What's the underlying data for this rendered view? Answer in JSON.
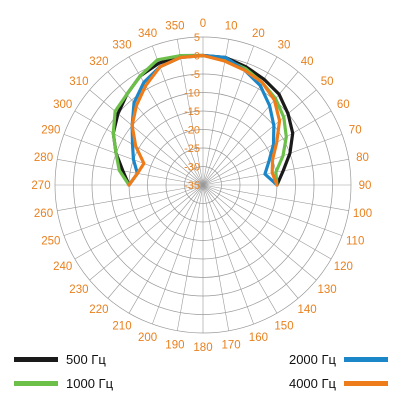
{
  "chart_data": {
    "type": "polar-line",
    "angular_ticks": [
      "0",
      "10",
      "20",
      "30",
      "40",
      "50",
      "60",
      "70",
      "80",
      "90",
      "100",
      "110",
      "120",
      "130",
      "140",
      "150",
      "160",
      "170",
      "180",
      "190",
      "200",
      "210",
      "220",
      "230",
      "240",
      "250",
      "260",
      "270",
      "280",
      "290",
      "300",
      "310",
      "320",
      "330",
      "340",
      "350"
    ],
    "radial_ticks": [
      "5",
      "0",
      "-5",
      "-10",
      "-15",
      "-20",
      "-25",
      "-30",
      "-35"
    ],
    "rlim": [
      -35,
      5
    ],
    "grid": true,
    "legend_placement": "bottom",
    "colors": {
      "grid": "#999999",
      "angle_label": "#E8801E",
      "radial_label": "#E8801E"
    },
    "series": [
      {
        "name": "500 Гц",
        "color": "#1a1a1a",
        "angles": [
          270,
          280,
          290,
          300,
          310,
          320,
          330,
          340,
          350,
          0,
          10,
          20,
          30,
          40,
          50,
          60,
          70,
          80,
          90
        ],
        "values": [
          -15,
          -13,
          -10,
          -7,
          -5,
          -3,
          -1,
          0,
          0.5,
          0,
          0,
          -1,
          -2,
          -3,
          -5,
          -7,
          -10,
          -13,
          -15
        ]
      },
      {
        "name": "1000 Гц",
        "color": "#6cc04a",
        "angles": [
          270,
          280,
          290,
          300,
          310,
          320,
          330,
          340,
          350,
          0,
          10,
          20,
          30,
          40,
          50,
          60,
          70,
          80,
          90
        ],
        "values": [
          -15,
          -12,
          -10,
          -7,
          -4,
          -3,
          -1,
          1,
          0.5,
          0,
          -0.5,
          -1.5,
          -3,
          -4.5,
          -6.5,
          -9,
          -12,
          -15,
          -15
        ]
      },
      {
        "name": "2000 Гц",
        "color": "#1b86c8",
        "angles": [
          270,
          280,
          290,
          300,
          310,
          320,
          330,
          340,
          350,
          0,
          10,
          20,
          30,
          40,
          50,
          60,
          70,
          80,
          90
        ],
        "values": [
          -15,
          -17,
          -15,
          -13,
          -10,
          -6,
          -3,
          -1,
          0,
          0,
          0,
          -2,
          -4,
          -7,
          -10,
          -13,
          -16,
          -18,
          -15
        ]
      },
      {
        "name": "4000 Гц",
        "color": "#ee7c1a",
        "angles": [
          270,
          280,
          290,
          300,
          310,
          320,
          330,
          340,
          350,
          0,
          10,
          20,
          30,
          40,
          50,
          60,
          70,
          80,
          90
        ],
        "values": [
          -15,
          -17,
          -18,
          -14,
          -10,
          -7,
          -4,
          -1,
          0,
          0,
          -1,
          -2,
          -3,
          -5,
          -8,
          -12,
          -15,
          -16,
          -15
        ]
      }
    ]
  }
}
